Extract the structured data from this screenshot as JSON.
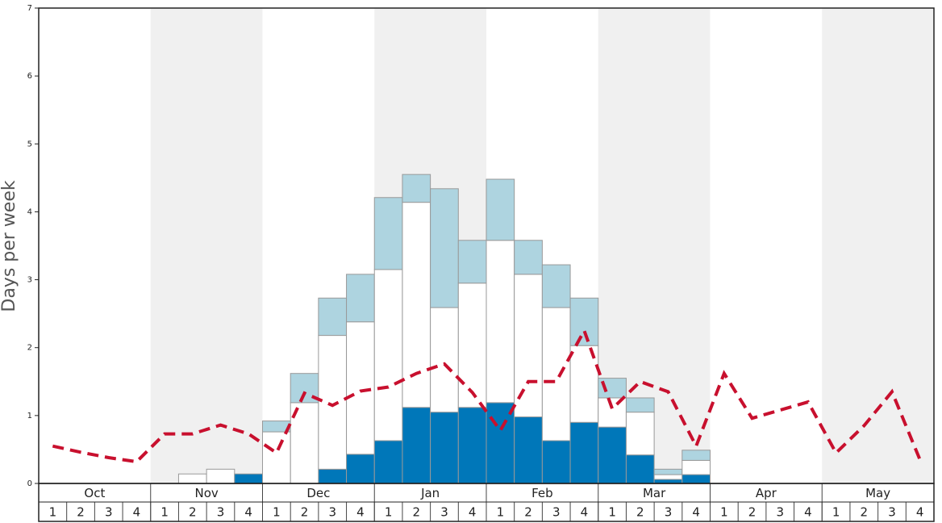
{
  "chart_data": {
    "type": "bar",
    "y_label": "Days per week",
    "months": [
      "Oct",
      "Nov",
      "Dec",
      "Jan",
      "Feb",
      "Mar",
      "Apr",
      "May"
    ],
    "categories": [
      "1",
      "2",
      "3",
      "4",
      "1",
      "2",
      "3",
      "4",
      "1",
      "2",
      "3",
      "4",
      "1",
      "2",
      "3",
      "4",
      "1",
      "2",
      "3",
      "4",
      "1",
      "2",
      "3",
      "4",
      "1",
      "2",
      "3",
      "4",
      "1",
      "2",
      "3",
      "4"
    ],
    "ylim": [
      0,
      7
    ],
    "yticks": [
      0,
      1,
      2,
      3,
      4,
      5,
      6,
      7
    ],
    "shade_color": "#f0f0f0",
    "series": [
      {
        "color": "#0077b9",
        "values": [
          0,
          0,
          0,
          0,
          0,
          0,
          0,
          0.14,
          0,
          0,
          0.21,
          0.43,
          0.63,
          1.12,
          1.05,
          1.12,
          1.19,
          0.98,
          0.63,
          0.9,
          0.83,
          0.42,
          0.06,
          0.13,
          0,
          0,
          0,
          0,
          0,
          0,
          0,
          0
        ]
      },
      {
        "color": "#ffffff",
        "values": [
          0,
          0,
          0,
          0,
          0,
          0.14,
          0.21,
          0,
          0.76,
          1.19,
          1.97,
          1.95,
          2.52,
          3.02,
          1.54,
          1.83,
          2.39,
          2.1,
          1.96,
          1.13,
          0.43,
          0.63,
          0.07,
          0.21,
          0,
          0,
          0,
          0,
          0,
          0,
          0,
          0
        ]
      },
      {
        "color": "#aed4e0",
        "values": [
          0,
          0,
          0,
          0,
          0,
          0,
          0,
          0,
          0.16,
          0.43,
          0.55,
          0.7,
          1.06,
          0.41,
          1.75,
          0.63,
          0.9,
          0.5,
          0.63,
          0.7,
          0.29,
          0.21,
          0.08,
          0.15,
          0,
          0,
          0,
          0,
          0,
          0,
          0,
          0
        ]
      }
    ],
    "line": {
      "type": "line",
      "color": "#c8102e",
      "values": [
        0.55,
        0.46,
        0.38,
        0.32,
        0.73,
        0.73,
        0.86,
        0.73,
        0.45,
        1.33,
        1.15,
        1.36,
        1.42,
        1.62,
        1.76,
        1.34,
        0.78,
        1.5,
        1.5,
        2.25,
        1.1,
        1.5,
        1.35,
        0.55,
        1.62,
        0.96,
        1.08,
        1.2,
        0.45,
        0.85,
        1.35,
        0.35
      ]
    }
  }
}
